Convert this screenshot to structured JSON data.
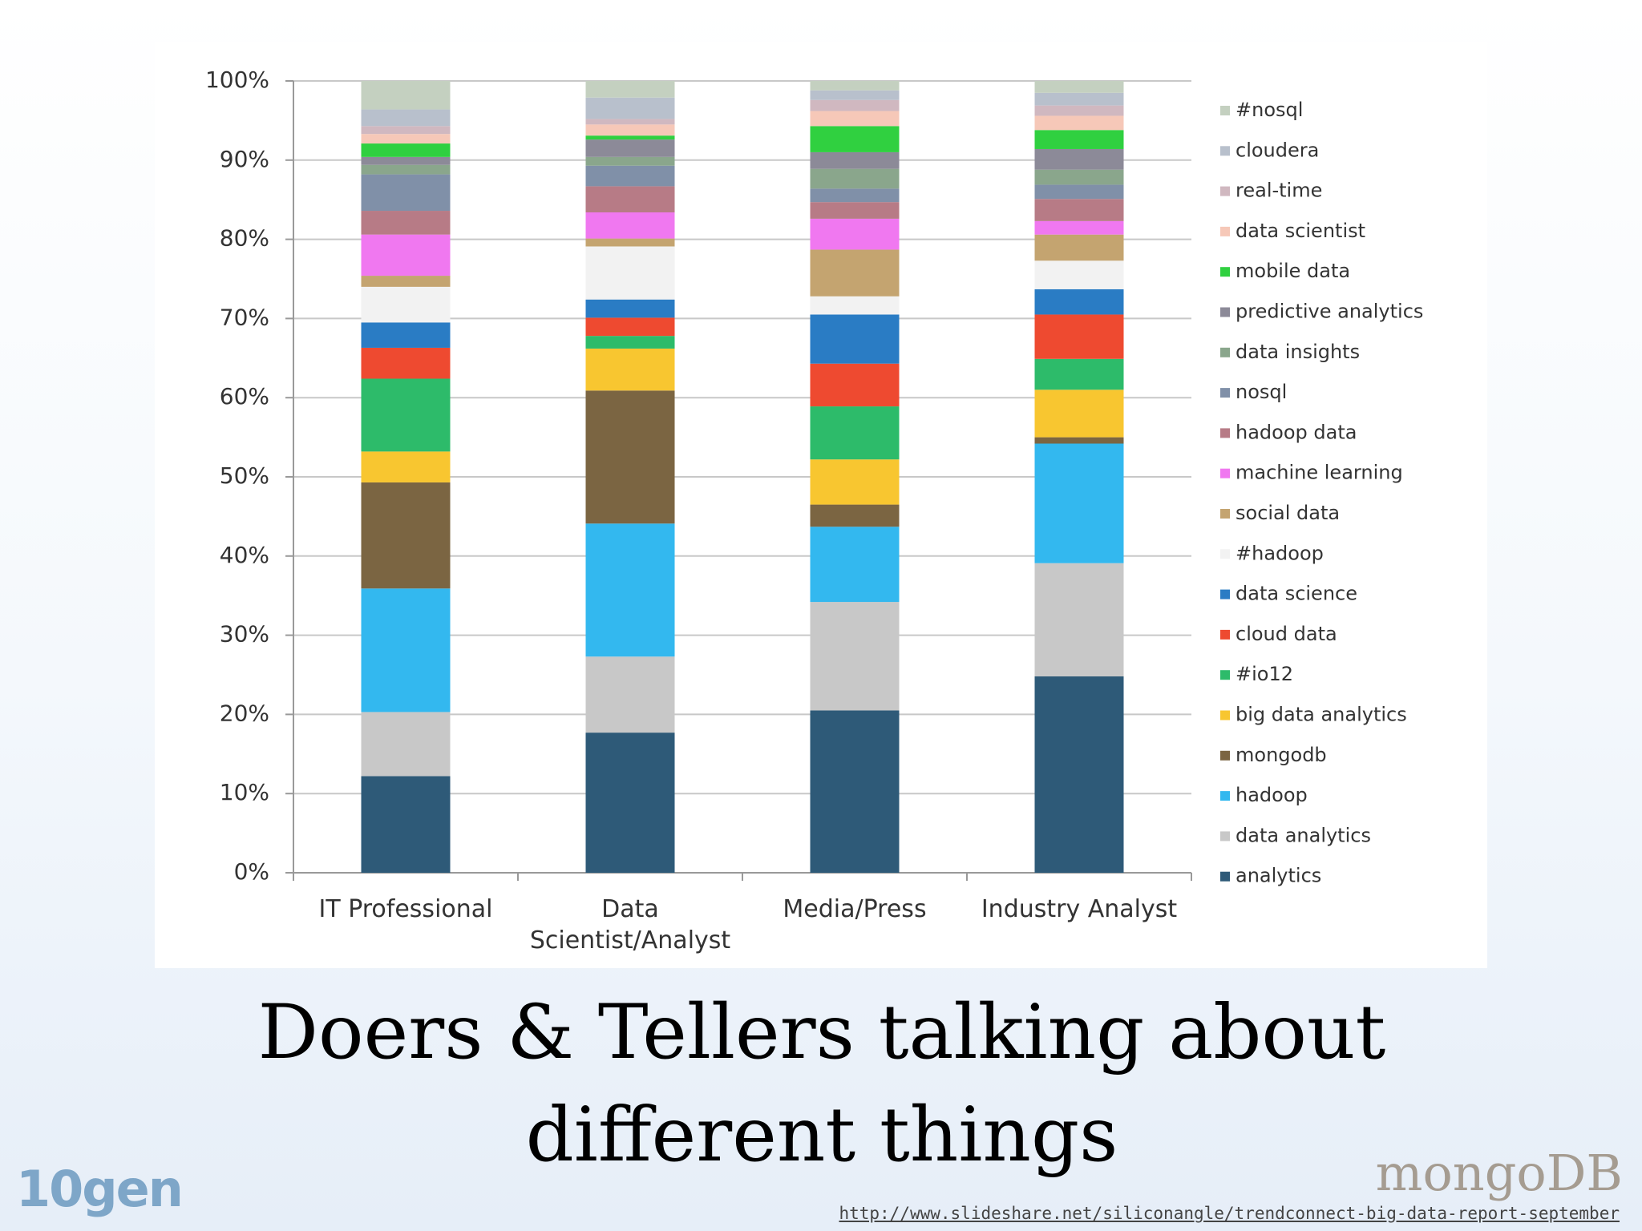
{
  "chart_data": {
    "type": "stacked-bar",
    "categories": [
      "IT Professional",
      "Data Scientist/Analyst",
      "Media/Press",
      "Industry Analyst"
    ],
    "ylim": [
      0,
      100
    ],
    "yticks": [
      {
        "value": 0,
        "label": "0%"
      },
      {
        "value": 10,
        "label": "10%"
      },
      {
        "value": 20,
        "label": "20%"
      },
      {
        "value": 30,
        "label": "30%"
      },
      {
        "value": 40,
        "label": "40%"
      },
      {
        "value": 50,
        "label": "50%"
      },
      {
        "value": 60,
        "label": "60%"
      },
      {
        "value": 70,
        "label": "70%"
      },
      {
        "value": 80,
        "label": "80%"
      },
      {
        "value": 90,
        "label": "90%"
      },
      {
        "value": 100,
        "label": "100%"
      }
    ],
    "grid": true,
    "series": [
      {
        "name": "analytics",
        "color": "#2e5a78",
        "values": [
          12.2,
          17.7,
          20.5,
          24.8
        ]
      },
      {
        "name": "data analytics",
        "color": "#c8c8c8",
        "values": [
          8.1,
          9.6,
          13.7,
          14.3
        ]
      },
      {
        "name": "hadoop",
        "color": "#33b8ef",
        "values": [
          15.6,
          16.8,
          9.5,
          15.1
        ]
      },
      {
        "name": "mongodb",
        "color": "#7b6542",
        "values": [
          13.4,
          16.8,
          2.8,
          0.8
        ]
      },
      {
        "name": "big data analytics",
        "color": "#f8c630",
        "values": [
          3.9,
          5.3,
          5.7,
          6.0
        ]
      },
      {
        "name": "#io12",
        "color": "#2dbb6a",
        "values": [
          9.2,
          1.6,
          6.7,
          3.9
        ]
      },
      {
        "name": "cloud data",
        "color": "#ee4a30",
        "values": [
          3.9,
          2.3,
          5.4,
          5.6
        ]
      },
      {
        "name": "data science",
        "color": "#2a7cc4",
        "values": [
          3.2,
          2.3,
          6.2,
          3.2
        ]
      },
      {
        "name": "#hadoop",
        "color": "#f2f2f2",
        "values": [
          4.5,
          6.7,
          2.3,
          3.6
        ]
      },
      {
        "name": "social data",
        "color": "#c4a470",
        "values": [
          1.4,
          1.0,
          5.9,
          3.3
        ]
      },
      {
        "name": "machine learning",
        "color": "#f078f0",
        "values": [
          5.2,
          3.3,
          3.9,
          1.7
        ]
      },
      {
        "name": "hadoop data",
        "color": "#b77b86",
        "values": [
          3.0,
          3.3,
          2.1,
          2.8
        ]
      },
      {
        "name": "nosql",
        "color": "#8090a8",
        "values": [
          4.6,
          2.6,
          1.7,
          1.8
        ]
      },
      {
        "name": "data insights",
        "color": "#8aa68c",
        "values": [
          1.2,
          1.1,
          2.5,
          1.9
        ]
      },
      {
        "name": "predictive analytics",
        "color": "#8c8a98",
        "values": [
          1.0,
          2.2,
          2.1,
          2.6
        ]
      },
      {
        "name": "mobile data",
        "color": "#30d040",
        "values": [
          1.7,
          0.5,
          3.3,
          2.4
        ]
      },
      {
        "name": "data scientist",
        "color": "#f6c8b8",
        "values": [
          1.2,
          1.4,
          1.9,
          1.8
        ]
      },
      {
        "name": "real-time",
        "color": "#d0b8c0",
        "values": [
          1.0,
          0.7,
          1.4,
          1.3
        ]
      },
      {
        "name": "cloudera",
        "color": "#b8c0cc",
        "values": [
          2.1,
          2.7,
          1.2,
          1.6
        ]
      },
      {
        "name": "#nosql",
        "color": "#c4d0c0",
        "values": [
          3.6,
          2.1,
          1.2,
          1.5
        ]
      }
    ]
  },
  "slide": {
    "title": "Doers & Tellers talking about different things",
    "source_url": "http://www.slideshare.net/siliconangle/trendconnect-big-data-report-september",
    "logo_left": "10gen",
    "logo_right": "mongoDB"
  }
}
